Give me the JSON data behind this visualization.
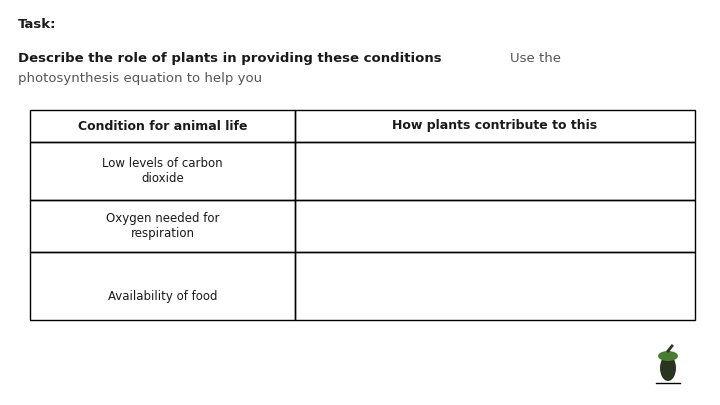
{
  "background_color": "#ffffff",
  "task_label": "Task:",
  "title_bold": "Describe the role of plants in providing these conditions",
  "title_normal_1": "Use the",
  "title_normal_2": "photosynthesis equation to help you",
  "table_headers": [
    "Condition for animal life",
    "How plants contribute to this"
  ],
  "table_rows": [
    [
      "Low levels of carbon\ndioxide",
      ""
    ],
    [
      "Oxygen needed for\nrespiration",
      ""
    ],
    [
      "Availability of food",
      ""
    ]
  ],
  "border_color": "#000000",
  "text_color_dark": "#1a1a1a",
  "text_color_gray": "#555555",
  "logo_body_color": "#2a3520",
  "logo_cap_color": "#4a7c2f"
}
